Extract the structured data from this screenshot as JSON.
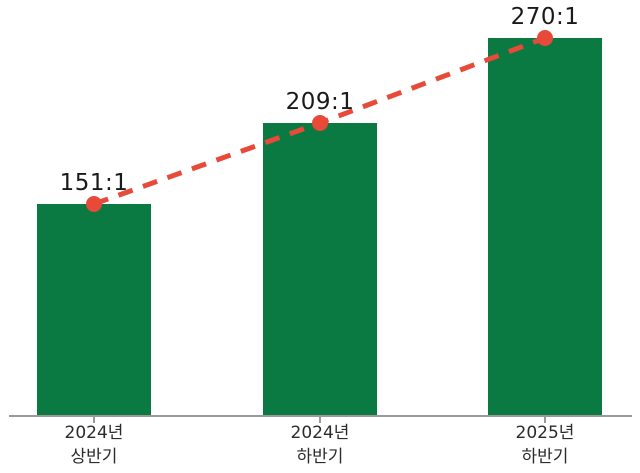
{
  "chart_data": {
    "type": "bar",
    "title": "",
    "categories": [
      "2024년\n상반기",
      "2024년\n하반기",
      "2025년\n하반기"
    ],
    "values": [
      151,
      209,
      270
    ],
    "value_labels": [
      "151:1",
      "209:1",
      "270:1"
    ],
    "overlay": {
      "type": "line",
      "style": "dashed",
      "markers": "circle"
    },
    "ylim": [
      0,
      297
    ],
    "grid": false,
    "legend": false,
    "xlabel": "",
    "ylabel": "",
    "colors": {
      "bar": "#0a7a42",
      "line": "#e74a38",
      "marker": "#e74a38",
      "axis": "#9a9a9a",
      "value_label": "#1a1a1a",
      "tick_label": "#2b2b2b"
    }
  }
}
